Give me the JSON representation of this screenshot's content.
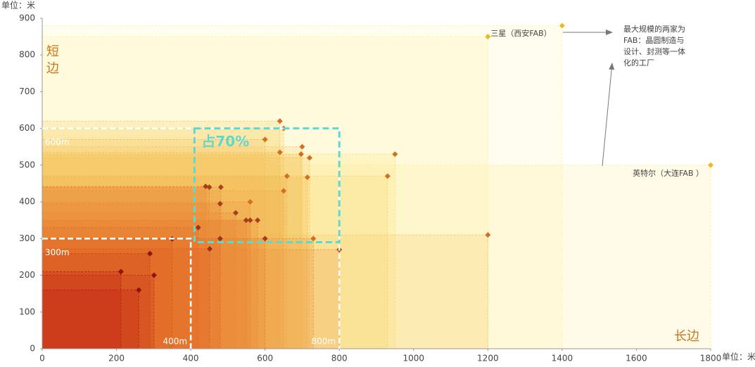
{
  "chart_data": {
    "type": "scatter",
    "x_unit_label": "单位：米",
    "y_unit_label": "单位：米",
    "y_axis_label": "短边",
    "x_axis_label": "长边",
    "xlim": [
      0,
      1800
    ],
    "xticks": [
      0,
      200,
      400,
      600,
      800,
      1000,
      1200,
      1400,
      1600,
      1800
    ],
    "ylim": [
      0,
      900
    ],
    "yticks": [
      0,
      100,
      200,
      300,
      400,
      500,
      600,
      700,
      800,
      900
    ],
    "series": [
      {
        "name": "FAB",
        "x": [
          1400,
          1200,
          1800,
          1200,
          640,
          650,
          600,
          640,
          700,
          697,
          720,
          950,
          930,
          659,
          714,
          650,
          440,
          450,
          481,
          479,
          560,
          521,
          549,
          560,
          580,
          420,
          479,
          600,
          730,
          800,
          451,
          350,
          290,
          301,
          212,
          260
        ],
        "values": [
          880,
          850,
          500,
          310,
          620,
          600,
          570,
          535,
          550,
          530,
          520,
          530,
          470,
          470,
          467,
          430,
          442,
          440,
          440,
          395,
          400,
          370,
          350,
          350,
          350,
          330,
          300,
          300,
          300,
          270,
          272,
          299,
          259,
          200,
          210,
          160
        ]
      }
    ],
    "point_annotations": [
      {
        "label": "三星（西安FAB）",
        "point": 1
      },
      {
        "label": "英特尔（大连FAB ）",
        "point": 2
      }
    ],
    "note": [
      "最大规模的两家为",
      "FAB：晶圆制造与",
      "设计、封测等一体",
      "化的工厂"
    ],
    "reference_boxes": [
      {
        "x": 400,
        "y": 300,
        "x_label": "400m",
        "y_label": "300m"
      },
      {
        "x": 800,
        "y": 600,
        "x_label": "800m",
        "y_label": "600m"
      }
    ],
    "highlight": {
      "label": "占70%",
      "x": [
        410,
        800
      ],
      "y": [
        290,
        600
      ],
      "color": "#5fd8d0"
    }
  }
}
